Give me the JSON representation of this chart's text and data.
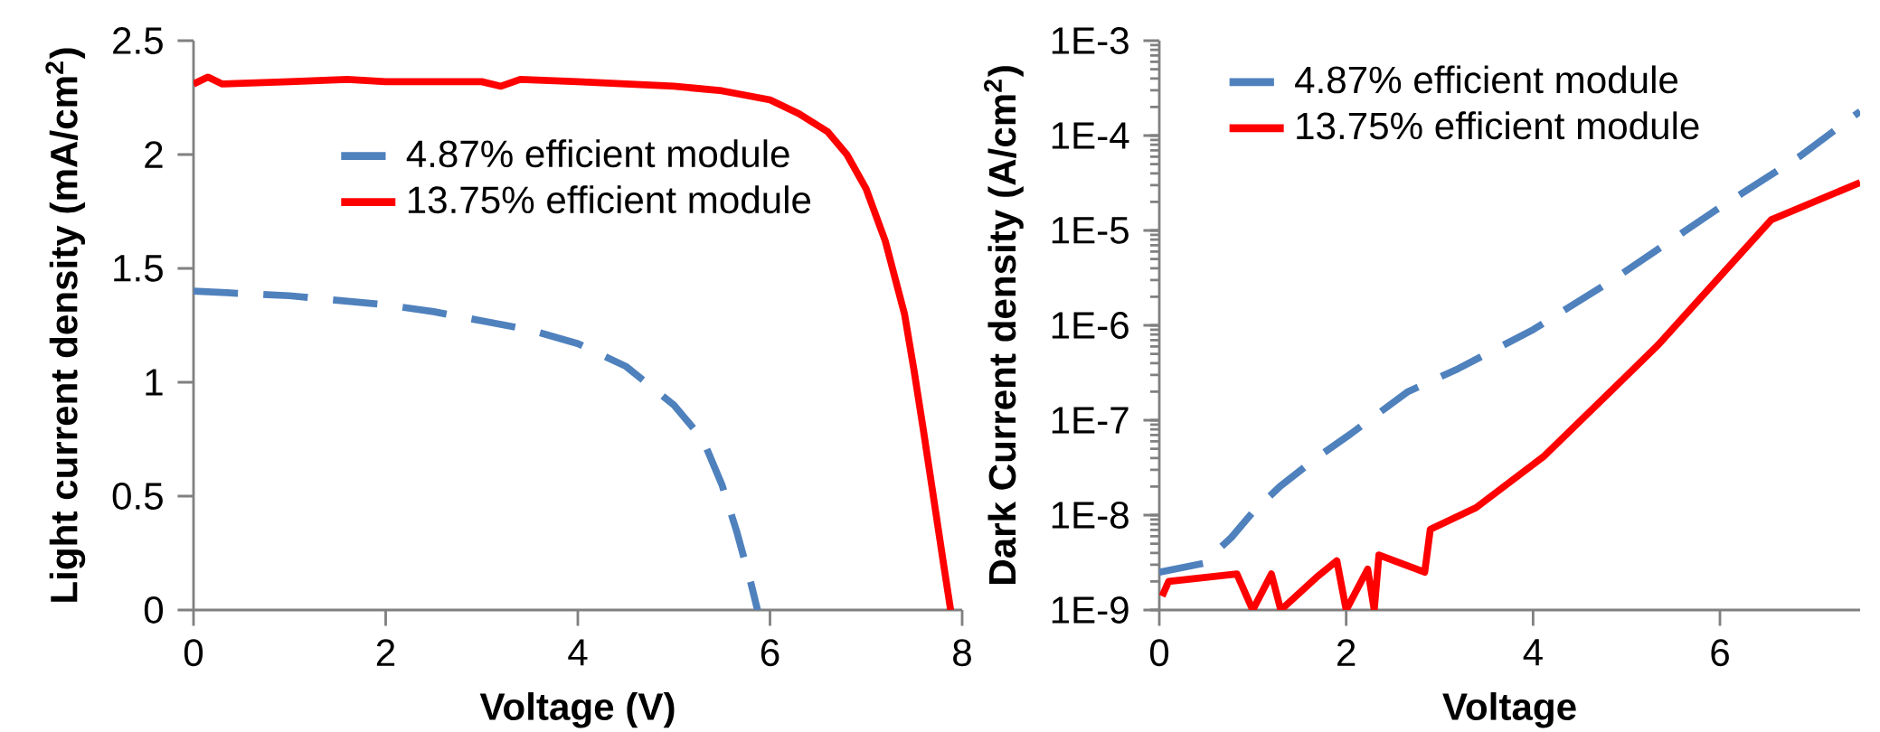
{
  "chart_data": [
    {
      "type": "line",
      "xlabel": "Voltage (V)",
      "ylabel": "Light current density (mA/cm$^{2}$)",
      "xlim": [
        0,
        8
      ],
      "ylim": [
        0,
        2.5
      ],
      "xticks": [
        0,
        2,
        4,
        6,
        8
      ],
      "yticks": [
        0,
        0.5,
        1,
        1.5,
        2,
        2.5
      ],
      "legend": "top",
      "series": [
        {
          "name": "4.87% efficient module",
          "color": "#4f81bd",
          "line_style": "dashed",
          "x": [
            0,
            0.5,
            1,
            1.5,
            2,
            2.5,
            3,
            3.5,
            4,
            4.5,
            5,
            5.3,
            5.5,
            5.65,
            5.8,
            5.87
          ],
          "values": [
            1.4,
            1.39,
            1.38,
            1.36,
            1.34,
            1.31,
            1.27,
            1.23,
            1.17,
            1.07,
            0.9,
            0.75,
            0.55,
            0.35,
            0.12,
            0
          ]
        },
        {
          "name": "13.75% efficient module",
          "color": "#ff0000",
          "line_style": "solid",
          "x": [
            0,
            0.15,
            0.3,
            1,
            1.6,
            2,
            3,
            3.2,
            3.4,
            4,
            5,
            5.5,
            6,
            6.3,
            6.6,
            6.8,
            7.0,
            7.2,
            7.4,
            7.5,
            7.6,
            7.7,
            7.8,
            7.88
          ],
          "values": [
            2.31,
            2.34,
            2.31,
            2.32,
            2.33,
            2.32,
            2.32,
            2.3,
            2.33,
            2.32,
            2.3,
            2.28,
            2.24,
            2.18,
            2.1,
            2.0,
            1.85,
            1.62,
            1.3,
            1.05,
            0.78,
            0.5,
            0.22,
            0
          ]
        }
      ]
    },
    {
      "type": "line",
      "xlabel": "Voltage",
      "ylabel": "Dark Current density (A/cm$^{2}$)",
      "log": "y",
      "xlim": [
        0,
        7.5
      ],
      "ylim": [
        1e-09,
        0.001
      ],
      "xticks": [
        0,
        2,
        4,
        6
      ],
      "yticks": [
        {
          "value": 1e-09,
          "label": "1E-9"
        },
        {
          "value": 1e-08,
          "label": "1E-8"
        },
        {
          "value": 1e-07,
          "label": "1E-7"
        },
        {
          "value": 1e-06,
          "label": "1E-6"
        },
        {
          "value": 1e-05,
          "label": "1E-5"
        },
        {
          "value": 0.0001,
          "label": "1E-4"
        },
        {
          "value": 0.001,
          "label": "1E-3"
        }
      ],
      "legend": "top left",
      "series": [
        {
          "name": "4.87% efficient module",
          "color": "#4f81bd",
          "line_style": "dashed",
          "x": [
            0,
            0.47,
            0.77,
            1.0,
            1.29,
            1.68,
            2.05,
            2.66,
            3.2,
            4.0,
            4.85,
            5.94,
            6.85,
            7.5
          ],
          "values": [
            2.5e-09,
            3.1e-09,
            5.8e-09,
            1.07e-08,
            2e-08,
            4e-08,
            7.2e-08,
            2e-07,
            3.5e-07,
            9e-07,
            3e-06,
            1.6e-05,
            6e-05,
            0.00018
          ]
        },
        {
          "name": "13.75% efficient module",
          "color": "#ff0000",
          "line_style": "solid",
          "x": [
            0.03,
            0.1,
            0.83,
            1.0,
            1.2,
            1.3,
            1.68,
            1.9,
            2.0,
            2.23,
            2.3,
            2.35,
            2.84,
            2.9,
            3.39,
            4.12,
            5.33,
            6.55,
            7.5
          ],
          "values": [
            1.4e-09,
            2e-09,
            2.4e-09,
            1e-09,
            2.4e-09,
            1e-09,
            2.2e-09,
            3.3e-09,
            1e-09,
            2.7e-09,
            1e-09,
            3.8e-09,
            2.5e-09,
            7.1e-09,
            1.2e-08,
            4.2e-08,
            6.1e-07,
            1.3e-05,
            3.2e-05
          ]
        }
      ]
    }
  ]
}
